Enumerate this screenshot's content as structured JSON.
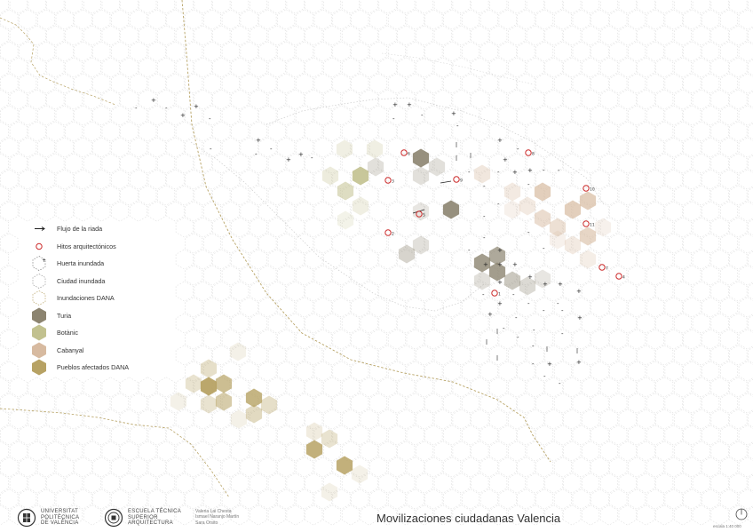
{
  "map": {
    "colors": {
      "turia": "#8c8470",
      "botanic": "#c2c18f",
      "cabanyal": "#d7baa0",
      "pueblos": "#b7a264",
      "grid": "#d5d5d5",
      "route": "#b7a264",
      "hito": "#cc2b2b",
      "flujo": "#222222"
    },
    "hitos": [
      "1",
      "2",
      "3",
      "4",
      "5",
      "6",
      "7",
      "8",
      "9",
      "10",
      "11"
    ]
  },
  "legend": {
    "items": [
      {
        "label": "Flujo de la riada",
        "icon": "arrow-icon"
      },
      {
        "label": "Hitos arquitectónicos",
        "icon": "red-circle-icon"
      },
      {
        "label": "Huerta inundada",
        "icon": "dashed-hexagon-plus-icon"
      },
      {
        "label": "Ciudad inundada",
        "icon": "dashed-hexagon-icon"
      },
      {
        "label": "Inundaciones DANA",
        "icon": "gold-dashed-hexagon-icon"
      },
      {
        "label": "Turia",
        "icon": "turia-hexagon-icon"
      },
      {
        "label": "Botànic",
        "icon": "botanic-hexagon-icon"
      },
      {
        "label": "Cabanyal",
        "icon": "cabanyal-hexagon-icon"
      },
      {
        "label": "Pueblos afectados DANA",
        "icon": "pueblos-hexagon-icon"
      }
    ]
  },
  "footer": {
    "upv_logo": [
      "UNIVERSITAT",
      "POLITÈCNICA",
      "DE VALÈNCIA"
    ],
    "etsa_logo": [
      "ESCUELA TÉCNICA",
      "SUPERIOR",
      "ARQUITECTURA"
    ],
    "authors": [
      "Valeria Lai Chesta",
      "Ismael Naranjo Martín",
      "Sara Orsito"
    ],
    "title": "Movilizaciones ciudadanas Valencia",
    "scale": "escala 1:40 000"
  }
}
